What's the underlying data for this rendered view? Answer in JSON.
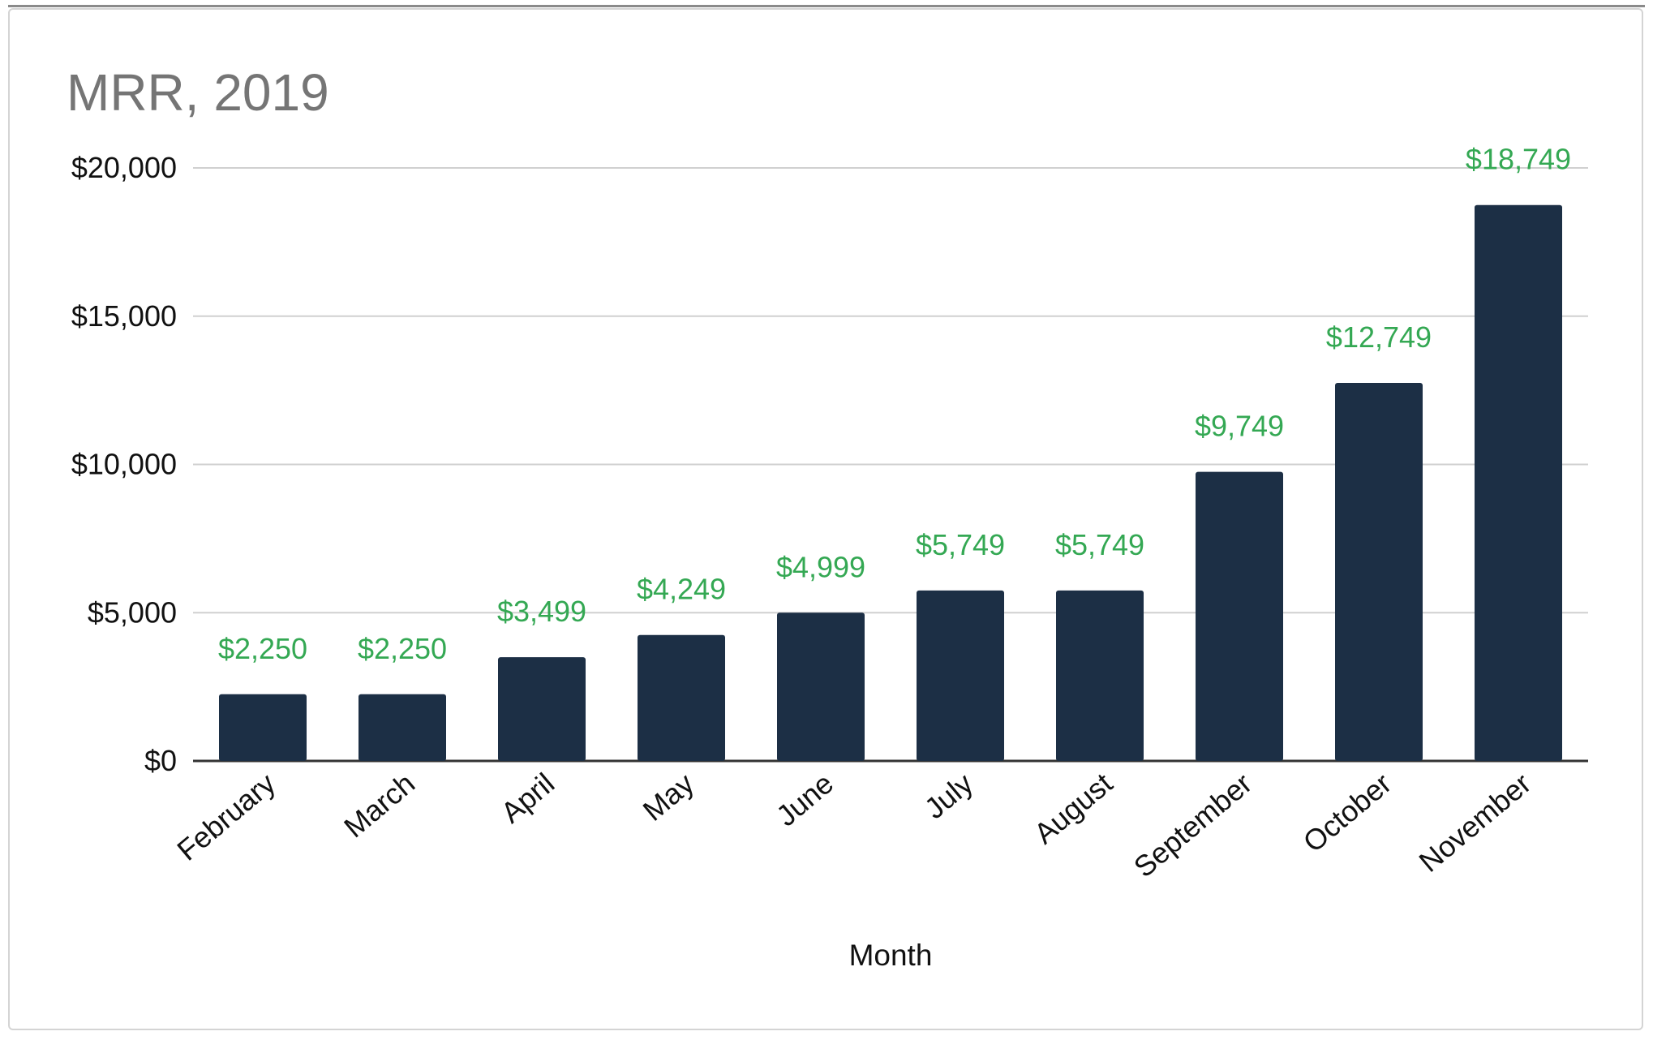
{
  "chart_data": {
    "type": "bar",
    "title": "MRR, 2019",
    "xlabel": "Month",
    "ylabel": "",
    "categories": [
      "February",
      "March",
      "April",
      "May",
      "June",
      "July",
      "August",
      "September",
      "October",
      "November"
    ],
    "values": [
      2250,
      2250,
      3499,
      4249,
      4999,
      5749,
      5749,
      9749,
      12749,
      18749
    ],
    "value_labels": [
      "$2,250",
      "$2,250",
      "$3,499",
      "$4,249",
      "$4,999",
      "$5,749",
      "$5,749",
      "$9,749",
      "$12,749",
      "$18,749"
    ],
    "ylim": [
      0,
      20000
    ],
    "yticks": [
      0,
      5000,
      10000,
      15000,
      20000
    ],
    "ytick_labels": [
      "$0",
      "$5,000",
      "$10,000",
      "$15,000",
      "$20,000"
    ],
    "grid": true,
    "legend": "none",
    "colors": {
      "bar": "#1c2f45",
      "data_label": "#34a853",
      "title": "#757575",
      "gridline": "#d0d0d0",
      "baseline": "#333333"
    }
  }
}
